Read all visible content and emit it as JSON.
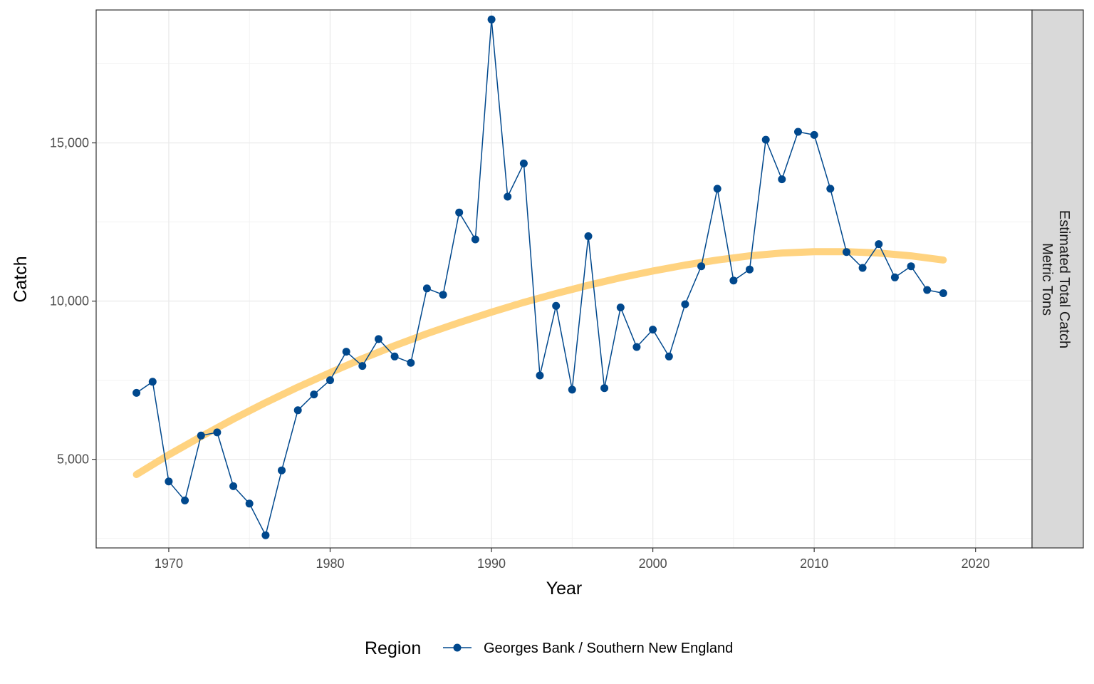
{
  "chart_data": {
    "type": "line",
    "xlabel": "Year",
    "ylabel": "Catch",
    "xlim": [
      1965.5,
      2023.5
    ],
    "ylim": [
      2200,
      19200
    ],
    "x_ticks": [
      1970,
      1980,
      1990,
      2000,
      2010,
      2020
    ],
    "x_tick_labels": [
      "1970",
      "1980",
      "1990",
      "2000",
      "2010",
      "2020"
    ],
    "y_ticks": [
      5000,
      10000,
      15000
    ],
    "y_tick_labels": [
      "5,000",
      "10,000",
      "15,000"
    ],
    "grid": true,
    "strip_label_lines": [
      "Estimated Total Catch",
      "Metric Tons"
    ],
    "legend": {
      "title": "Region",
      "position": "bottom",
      "entries": [
        "Georges Bank / Southern New England"
      ]
    },
    "series": [
      {
        "name": "Georges Bank / Southern New England",
        "color": "#00488d",
        "x": [
          1968,
          1969,
          1970,
          1971,
          1972,
          1973,
          1974,
          1975,
          1976,
          1977,
          1978,
          1979,
          1980,
          1981,
          1982,
          1983,
          1984,
          1985,
          1986,
          1987,
          1988,
          1989,
          1990,
          1991,
          1992,
          1993,
          1994,
          1995,
          1996,
          1997,
          1998,
          1999,
          2000,
          2001,
          2002,
          2003,
          2004,
          2005,
          2006,
          2007,
          2008,
          2009,
          2010,
          2011,
          2012,
          2013,
          2014,
          2015,
          2016,
          2017,
          2018
        ],
        "y": [
          7100,
          7450,
          4300,
          3700,
          5750,
          5850,
          4150,
          3600,
          2600,
          4650,
          6550,
          7050,
          7500,
          8400,
          7950,
          8800,
          8250,
          8050,
          10400,
          10200,
          12800,
          11950,
          18900,
          13300,
          14350,
          7650,
          9850,
          7200,
          12050,
          7250,
          9800,
          8550,
          9100,
          8250,
          9900,
          11100,
          13550,
          10650,
          11000,
          15100,
          13850,
          15350,
          15250,
          13550,
          11550,
          11050,
          11800,
          10750,
          11100,
          10350,
          10250
        ]
      }
    ],
    "trend": {
      "color": "#ffd380",
      "x": [
        1968,
        1970,
        1972,
        1974,
        1976,
        1978,
        1980,
        1982,
        1984,
        1986,
        1988,
        1990,
        1992,
        1994,
        1996,
        1998,
        2000,
        2002,
        2004,
        2006,
        2008,
        2010,
        2012,
        2014,
        2016,
        2018
      ],
      "y": [
        4520,
        5140,
        5720,
        6270,
        6790,
        7280,
        7740,
        8180,
        8590,
        8970,
        9320,
        9650,
        9960,
        10240,
        10500,
        10740,
        10950,
        11140,
        11300,
        11430,
        11520,
        11560,
        11560,
        11520,
        11430,
        11300
      ]
    }
  }
}
